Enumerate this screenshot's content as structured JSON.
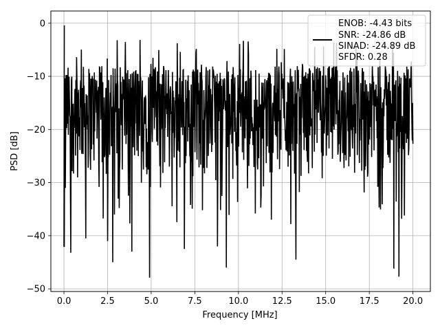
{
  "chart_data": {
    "type": "line",
    "xlabel": "Frequency [MHz]",
    "ylabel": "PSD [dB]",
    "xlim": [
      -0.75,
      21.0
    ],
    "ylim": [
      -50.5,
      2.3
    ],
    "xticks": [
      0.0,
      2.5,
      5.0,
      7.5,
      10.0,
      12.5,
      15.0,
      17.5,
      20.0
    ],
    "xtick_labels": [
      "0.0",
      "2.5",
      "5.0",
      "7.5",
      "10.0",
      "12.5",
      "15.0",
      "17.5",
      "20.0"
    ],
    "yticks": [
      0,
      -10,
      -20,
      -30,
      -40,
      -50
    ],
    "ytick_labels": [
      "0",
      "−10",
      "−20",
      "−30",
      "−40",
      "−50"
    ],
    "grid": true,
    "legend": {
      "placement": "top-right",
      "entries": [
        "ENOB: -4.43 bits",
        "SNR: -24.86 dB",
        "SINAD: -24.89 dB",
        "SFDR: 0.28"
      ]
    },
    "series": [
      {
        "color": "#000000",
        "x_range": [
          0.0,
          20.0
        ],
        "n_points": 1024,
        "peak": {
          "x": 0.02,
          "y": -0.4
        },
        "typical_range": [
          -30,
          -8
        ],
        "notable_dips": [
          {
            "x": 0.02,
            "y": -42
          },
          {
            "x": 0.08,
            "y": -31
          },
          {
            "x": 0.4,
            "y": -43.2
          },
          {
            "x": 1.25,
            "y": -40.5
          },
          {
            "x": 2.5,
            "y": -41
          },
          {
            "x": 2.8,
            "y": -45
          },
          {
            "x": 3.9,
            "y": -43
          },
          {
            "x": 4.9,
            "y": -47.9
          },
          {
            "x": 6.9,
            "y": -42.5
          },
          {
            "x": 8.8,
            "y": -42
          },
          {
            "x": 9.3,
            "y": -46
          },
          {
            "x": 13.3,
            "y": -44.5
          },
          {
            "x": 18.9,
            "y": -46.2
          },
          {
            "x": 19.2,
            "y": -47.7
          }
        ]
      }
    ]
  }
}
